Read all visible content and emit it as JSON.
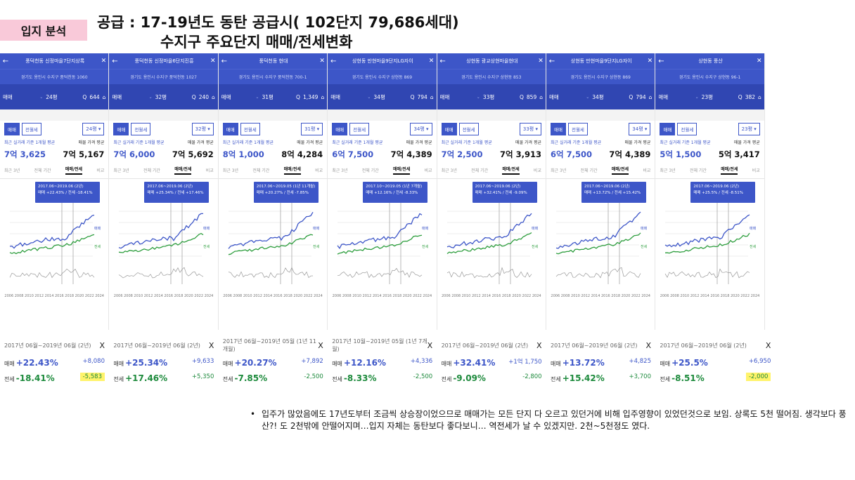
{
  "badge": "입지 분석",
  "title_line1": "공급 : 17-19년도 동탄 공급시( 102단지 79,686세대)",
  "title_line2": "수지구 주요단지 매매/전세변화",
  "common": {
    "tab_sale": "매매",
    "tab_rent": "전월세",
    "price_label_left": "최근 실거래 기준 1개월 평균",
    "price_label_right": "매물 가격 평균",
    "subtab_recent": "최근 3년",
    "subtab_all": "전체 기간",
    "subtab_selected": "매매/전세",
    "subtab_compare": "비교",
    "filter_type": "매매",
    "chart_label_sale": "매매",
    "chart_label_rent": "전세",
    "years": "2006 2008 2010 2012 2014 2016 2018 2020 2022 2024",
    "sum_label_sale": "매매",
    "sum_label_rent": "전세"
  },
  "panels": [
    {
      "name": "풍덕천동 신정마을7단지상록",
      "address": "경기도 용인시 수지구 풍덕천동 1060",
      "size": "24평",
      "count": "644",
      "price_actual": "7억 3,625",
      "price_listing": "7억 5,167",
      "tip_period": "2017.06~2019.06 (2년)",
      "tip_change": "매매 +22.43% / 전세 -18.41%",
      "sum_period": "2017년 06월~2019년 06월 (2년)",
      "sale_pct": "+22.43%",
      "sale_amt": "+8,080",
      "rent_pct": "-18.41%",
      "rent_amt": "-5,583",
      "rent_highlight": true
    },
    {
      "name": "풍덕천동 신정마을6단지진흥",
      "address": "경기도 용인시 수지구 풍덕천동 1027",
      "size": "32평",
      "count": "240",
      "price_actual": "7억 6,000",
      "price_listing": "7억 5,692",
      "tip_period": "2017.06~2019.06 (2년)",
      "tip_change": "매매 +25.34% / 전세 +17.46%",
      "sum_period": "2017년 06월~2019년 06월 (2년)",
      "sale_pct": "+25.34%",
      "sale_amt": "+9,633",
      "rent_pct": "+17.46%",
      "rent_amt": "+5,350",
      "rent_highlight": false
    },
    {
      "name": "풍덕천동 현대",
      "address": "경기도 용인시 수지구 풍덕천동 700-1",
      "size": "31평",
      "count": "1,349",
      "price_actual": "8억 1,000",
      "price_listing": "8억 4,284",
      "tip_period": "2017.06~2019.05 (1년 11개월)",
      "tip_change": "매매 +20.27% / 전세 -7.85%",
      "sum_period": "2017년 06월~2019년 05월 (1년 11개월)",
      "sale_pct": "+20.27%",
      "sale_amt": "+7,892",
      "rent_pct": "-7.85%",
      "rent_amt": "-2,500",
      "rent_highlight": false
    },
    {
      "name": "상현동 만현마을9단지LG자이",
      "address": "경기도 용인시 수지구 상현동 869",
      "size": "34평",
      "count": "794",
      "price_actual": "6억 7,500",
      "price_listing": "7억 4,389",
      "tip_period": "2017.10~2019.05 (1년 7개월)",
      "tip_change": "매매 +12.16% / 전세 -8.33%",
      "sum_period": "2017년 10월~2019년 05월 (1년 7개월)",
      "sale_pct": "+12.16%",
      "sale_amt": "+4,336",
      "rent_pct": "-8.33%",
      "rent_amt": "-2,500",
      "rent_highlight": false
    },
    {
      "name": "상현동 광교상현마을현대",
      "address": "경기도 용인시 수지구 상현동 853",
      "size": "33평",
      "count": "859",
      "price_actual": "7억 2,500",
      "price_listing": "7억 3,913",
      "tip_period": "2017.06~2019.06 (2년)",
      "tip_change": "매매 +32.41% / 전세 -9.09%",
      "sum_period": "2017년 06월~2019년 06월 (2년)",
      "sale_pct": "+32.41%",
      "sale_amt": "+1억 1,750",
      "rent_pct": "-9.09%",
      "rent_amt": "-2,800",
      "rent_highlight": false
    },
    {
      "name": "상현동 만현마을9단지LG자이",
      "address": "경기도 용인시 수지구 상현동 869",
      "size": "34평",
      "count": "794",
      "price_actual": "6억 7,500",
      "price_listing": "7억 4,389",
      "tip_period": "2017.06~2019.06 (2년)",
      "tip_change": "매매 +13.72% / 전세 +15.42%",
      "sum_period": "2017년 06월~2019년 06월 (2년)",
      "sale_pct": "+13.72%",
      "sale_amt": "+4,825",
      "rent_pct": "+15.42%",
      "rent_amt": "+3,700",
      "rent_highlight": false
    },
    {
      "name": "상현동 풍산",
      "address": "경기도 용인시 수지구 상현동 96-1",
      "size": "23평",
      "count": "382",
      "price_actual": "5억 1,500",
      "price_listing": "5억 3,417",
      "tip_period": "2017.06~2019.06 (2년)",
      "tip_change": "매매 +25.5% / 전세 -8.51%",
      "sum_period": "2017년 06월~2019년 06월 (2년)",
      "sale_pct": "+25.5%",
      "sale_amt": "+6,950",
      "rent_pct": "-8.51%",
      "rent_amt": "-2,000",
      "rent_highlight": true
    }
  ],
  "note": "입주가 많았음에도 17년도부터 조금씩 상승장이었으므로 매매가는 모든 단지 다 오르고 있던거에 비해 입주영향이 있었던것으로 보임. 상록도 5천 떨어짐. 생각보다 풍산?! 도 2천밖에 안떨어지며…입지 자체는 동탄보다 좋다보니… 역전세가 날 수 있겠지만. 2천~5천정도 였다.",
  "colors": {
    "sale_line": "#3d56c8",
    "rent_line": "#2e9e3e",
    "highlight": "#fff36b",
    "badge": "#f9c9d9"
  }
}
